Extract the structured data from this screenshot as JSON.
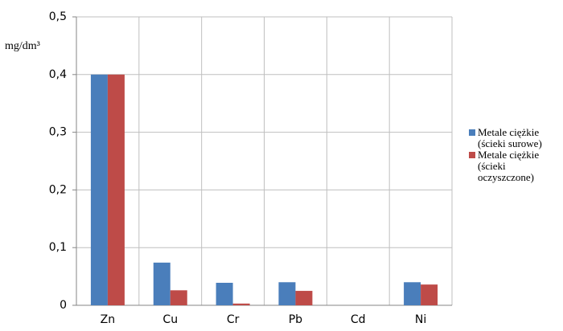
{
  "chart_data": {
    "type": "bar",
    "y_label": "mg/dm³",
    "categories": [
      "Zn",
      "Cu",
      "Cr",
      "Pb",
      "Cd",
      "Ni"
    ],
    "series": [
      {
        "name": "Metale ciężkie (ścieki surowe)",
        "color": "#4a7ebb",
        "values": [
          0.4,
          0.074,
          0.039,
          0.04,
          0,
          0.04
        ]
      },
      {
        "name": "Metale ciężkie (ścieki oczyszczone)",
        "color": "#be4b48",
        "values": [
          0.4,
          0.026,
          0.003,
          0.025,
          0,
          0.036
        ]
      }
    ],
    "ylim": [
      0,
      0.5
    ],
    "yticks": [
      0,
      {
        "value": 0.1,
        "label": "0,1"
      },
      {
        "value": 0.2,
        "label": "0,2"
      },
      {
        "value": 0.3,
        "label": "0,3"
      },
      {
        "value": 0.4,
        "label": "0,4"
      },
      {
        "value": 0.5,
        "label": "0,5"
      }
    ],
    "grid": true,
    "legend": "right"
  }
}
